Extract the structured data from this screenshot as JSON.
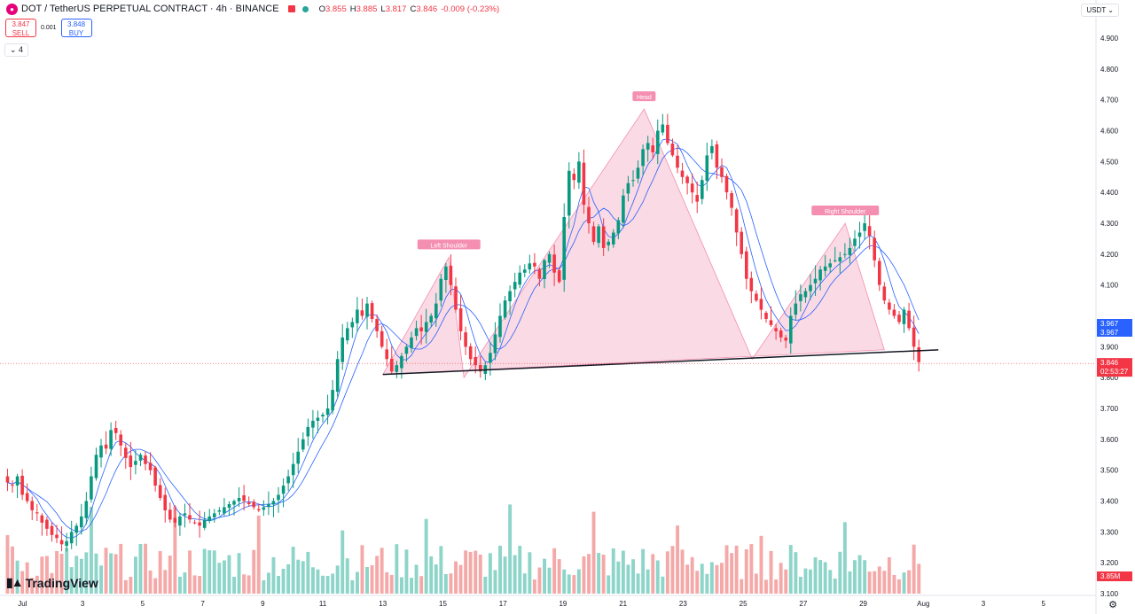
{
  "header": {
    "symbol_title": "DOT / TetherUS PERPETUAL CONTRACT · 4h · BINANCE",
    "ohlc": [
      {
        "label": "O",
        "value": "3.855"
      },
      {
        "label": "H",
        "value": "3.885"
      },
      {
        "label": "L",
        "value": "3.817"
      },
      {
        "label": "C",
        "value": "3.846"
      },
      {
        "label": "",
        "value": "-0.009 (-0.23%)"
      }
    ]
  },
  "trade": {
    "sell_price": "3.847",
    "sell_label": "SELL",
    "spread": "0.001",
    "buy_price": "3.848",
    "buy_label": "BUY"
  },
  "indicators_toggle": "4",
  "currency": "USDT",
  "brand": "TradingView",
  "colors": {
    "up": "#089981",
    "down": "#f23645",
    "up_volume": "#8dd4c9",
    "down_volume": "#f5a8a8",
    "ma": "#2962ff",
    "pattern_fill": "#f8c6d6",
    "label_bg": "#f48fb1",
    "neckline": "#131722"
  },
  "chart_data": {
    "type": "candlestick",
    "title": "DOT / TetherUS PERPETUAL CONTRACT · 4h · BINANCE",
    "ylim": [
      3.1,
      4.95
    ],
    "y_ticks": [
      "4.900",
      "4.800",
      "4.700",
      "4.600",
      "4.500",
      "4.400",
      "4.300",
      "4.200",
      "4.100",
      "3.900",
      "3.800",
      "3.700",
      "3.600",
      "3.500",
      "3.400",
      "3.300",
      "3.200",
      "3.100"
    ],
    "x_ticks": [
      {
        "label": "Jul",
        "day": 0
      },
      {
        "label": "3",
        "day": 2
      },
      {
        "label": "5",
        "day": 4
      },
      {
        "label": "7",
        "day": 6
      },
      {
        "label": "9",
        "day": 8
      },
      {
        "label": "11",
        "day": 10
      },
      {
        "label": "13",
        "day": 12
      },
      {
        "label": "15",
        "day": 14
      },
      {
        "label": "17",
        "day": 16
      },
      {
        "label": "19",
        "day": 18
      },
      {
        "label": "21",
        "day": 20
      },
      {
        "label": "23",
        "day": 22
      },
      {
        "label": "25",
        "day": 24
      },
      {
        "label": "27",
        "day": 26
      },
      {
        "label": "29",
        "day": 28
      },
      {
        "label": "Aug",
        "day": 30
      },
      {
        "label": "3",
        "day": 32
      },
      {
        "label": "5",
        "day": 34
      }
    ],
    "x_range_days": [
      -0.75,
      35.75
    ],
    "last_price": {
      "value": 3.846,
      "label": "3.846",
      "countdown": "02:53:27"
    },
    "ma_price_labels": [
      {
        "value": 3.967,
        "label": "3.967"
      },
      {
        "value": 3.967,
        "label": "3.967"
      }
    ],
    "volume_label": "3.85M",
    "closes": [
      3.46,
      3.45,
      3.48,
      3.42,
      3.4,
      3.37,
      3.36,
      3.33,
      3.31,
      3.29,
      3.28,
      3.26,
      3.27,
      3.3,
      3.32,
      3.35,
      3.4,
      3.48,
      3.55,
      3.58,
      3.57,
      3.63,
      3.62,
      3.58,
      3.54,
      3.51,
      3.53,
      3.55,
      3.52,
      3.5,
      3.45,
      3.41,
      3.37,
      3.34,
      3.33,
      3.35,
      3.36,
      3.34,
      3.33,
      3.32,
      3.34,
      3.35,
      3.36,
      3.37,
      3.38,
      3.39,
      3.4,
      3.41,
      3.4,
      3.39,
      3.38,
      3.37,
      3.38,
      3.39,
      3.4,
      3.42,
      3.45,
      3.48,
      3.52,
      3.56,
      3.6,
      3.64,
      3.66,
      3.67,
      3.68,
      3.7,
      3.76,
      3.86,
      3.93,
      3.96,
      3.98,
      4.02,
      4.0,
      4.04,
      3.99,
      3.95,
      3.9,
      3.86,
      3.82,
      3.84,
      3.87,
      3.9,
      3.93,
      3.96,
      3.95,
      3.98,
      4.0,
      4.04,
      4.12,
      4.16,
      4.1,
      4.02,
      3.95,
      3.9,
      3.86,
      3.84,
      3.82,
      3.84,
      3.88,
      3.94,
      4.0,
      4.05,
      4.08,
      4.11,
      4.14,
      4.15,
      4.17,
      4.16,
      4.12,
      4.18,
      4.2,
      4.14,
      4.11,
      4.32,
      4.47,
      4.44,
      4.5,
      4.36,
      4.3,
      4.24,
      4.29,
      4.22,
      4.24,
      4.27,
      4.31,
      4.39,
      4.43,
      4.44,
      4.48,
      4.54,
      4.56,
      4.53,
      4.6,
      4.62,
      4.56,
      4.52,
      4.48,
      4.45,
      4.43,
      4.4,
      4.37,
      4.44,
      4.52,
      4.55,
      4.48,
      4.45,
      4.4,
      4.35,
      4.27,
      4.2,
      4.12,
      4.08,
      4.05,
      4.02,
      3.99,
      3.97,
      3.95,
      3.93,
      3.92,
      4.0,
      4.04,
      4.07,
      4.08,
      4.1,
      4.12,
      4.15,
      4.16,
      4.17,
      4.18,
      4.19,
      4.2,
      4.22,
      4.25,
      4.27,
      4.3,
      4.26,
      4.18,
      4.1,
      4.05,
      4.02,
      4.0,
      3.98,
      4.02,
      3.96,
      3.9,
      3.85
    ]
  }
}
